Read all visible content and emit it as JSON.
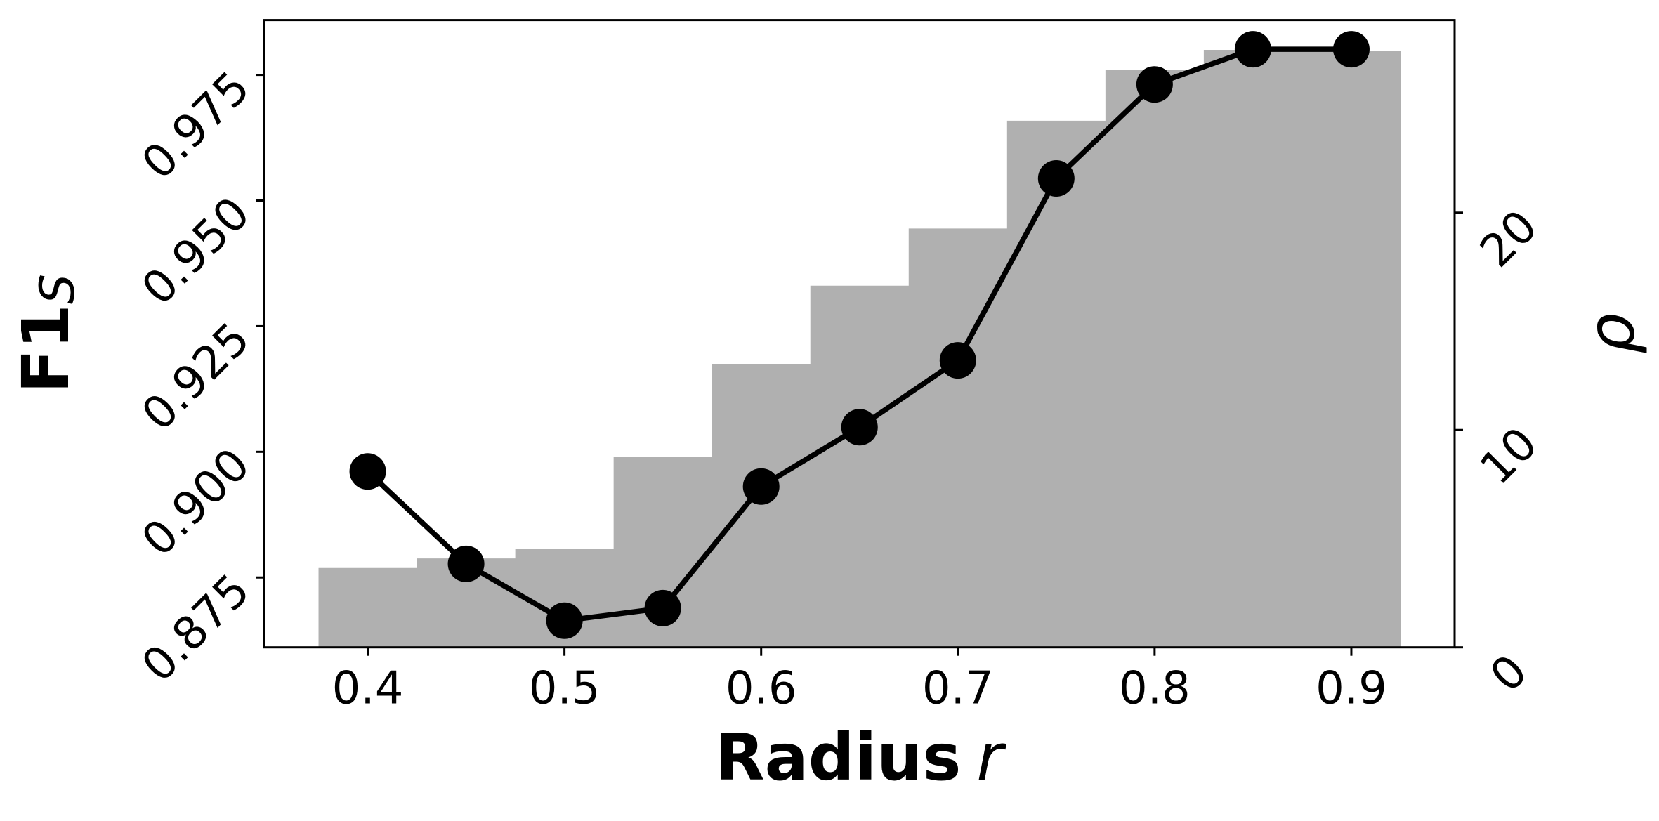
{
  "chart_data": {
    "type": "combo",
    "x_label": "Radius",
    "x_label_var": "r",
    "y_label": "F1",
    "y_label_sub": "S",
    "y2_label": "ρ",
    "x": [
      0.4,
      0.45,
      0.5,
      0.55,
      0.6,
      0.65,
      0.7,
      0.75,
      0.8,
      0.85,
      0.9
    ],
    "bar_width": 0.05,
    "series": [
      {
        "type": "bar",
        "axis": "y2",
        "color": "#b0b0b0",
        "values": [
          3.65,
          4.09,
          4.53,
          8.76,
          13.04,
          16.64,
          19.27,
          24.23,
          26.57,
          27.49,
          27.45
        ]
      },
      {
        "type": "line",
        "axis": "y",
        "color": "#000000",
        "values": [
          0.8961,
          0.8777,
          0.8664,
          0.8689,
          0.8931,
          0.9049,
          0.9182,
          0.9544,
          0.9731,
          0.9801,
          0.9801
        ]
      }
    ],
    "xlim": [
      0.3475,
      0.9525
    ],
    "xticks": [
      0.4,
      0.5,
      0.6,
      0.7,
      0.8,
      0.9
    ],
    "ylim": [
      0.8611,
      0.9859
    ],
    "yticks": [
      0.875,
      {
        "value": 0.9,
        "label": "0.900"
      },
      0.925,
      {
        "value": 0.95,
        "label": "0.950"
      },
      0.975
    ],
    "y2lim": [
      0,
      28.86
    ],
    "y2ticks": [
      0,
      10,
      20
    ],
    "grid": false
  }
}
